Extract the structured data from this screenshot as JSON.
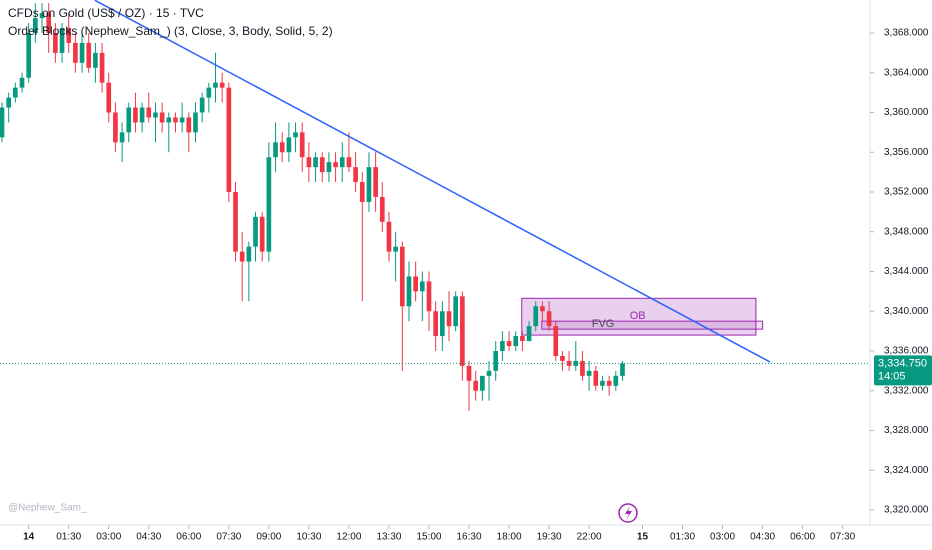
{
  "chart_data": {
    "type": "candlestick",
    "title": "CFDs on Gold (US$ / OZ) · 15 · TVC",
    "subtitle": "Order Blocks (Nephew_Sam_) (3, Close, 3, Body, Solid, 5, 2)",
    "watermark": "@Nephew_Sam_",
    "up_color": "#089981",
    "down_color": "#f23645",
    "open": [
      3357.5,
      3360.5,
      3361.5,
      3362.5,
      3363.5,
      3368,
      3369.5,
      3370,
      3368,
      3366,
      3368.5,
      3367,
      3365,
      3367,
      3364.5,
      3366,
      3363,
      3360,
      3357,
      3358,
      3360.5,
      3359,
      3360.5,
      3359.5,
      3360,
      3359,
      3359.5,
      3359,
      3359.5,
      3358,
      3360,
      3361.5,
      3362.5,
      3363,
      3362.5,
      3352,
      3346,
      3345,
      3346.5,
      3349.5,
      3346,
      3355.5,
      3357,
      3356,
      3357.5,
      3358,
      3355.5,
      3354.5,
      3355.5,
      3354,
      3355,
      3354.5,
      3355.5,
      3354.5,
      3353,
      3351,
      3354.5,
      3351.5,
      3349,
      3346,
      3346.5,
      3340.5,
      3343.5,
      3342,
      3343,
      3340,
      3337.5,
      3340,
      3338.5,
      3341.5,
      3334.5,
      3333,
      3332,
      3333.5,
      3334,
      3336,
      3337,
      3336.5,
      3337.5,
      3337,
      3338.5,
      3340.5,
      3340,
      3338.5,
      3335.5,
      3335,
      3334.5,
      3335,
      3333.5,
      3334,
      3332.5,
      3333,
      3332.5,
      3333.5
    ],
    "high": [
      3361,
      3362,
      3363,
      3364,
      3369,
      3371,
      3371,
      3371,
      3369,
      3369,
      3370,
      3368,
      3368,
      3368,
      3367,
      3367,
      3364,
      3361,
      3359,
      3361,
      3362,
      3361,
      3362,
      3361,
      3361,
      3360,
      3360,
      3361,
      3360,
      3361,
      3362,
      3363,
      3366,
      3364,
      3363,
      3353,
      3348,
      3347,
      3350,
      3350,
      3357,
      3359,
      3358,
      3359,
      3359,
      3359,
      3357,
      3356,
      3356,
      3356,
      3356,
      3357,
      3358,
      3356,
      3354,
      3356,
      3356,
      3353,
      3350,
      3348,
      3347,
      3345,
      3345,
      3344,
      3344,
      3341,
      3341,
      3342,
      3342,
      3342,
      3335,
      3334,
      3333,
      3335,
      3337,
      3338,
      3338,
      3338,
      3338,
      3339,
      3341,
      3341,
      3341,
      3339,
      3336,
      3336,
      3337,
      3336,
      3335,
      3334.5,
      3333.5,
      3333.5,
      3334,
      3335
    ],
    "low": [
      3357,
      3359,
      3361,
      3362,
      3363,
      3367,
      3368,
      3366,
      3365,
      3365,
      3366,
      3364,
      3364,
      3364,
      3363,
      3362,
      3359,
      3356,
      3355,
      3357,
      3358,
      3358,
      3359,
      3357,
      3358,
      3356,
      3358,
      3358,
      3356,
      3357,
      3359,
      3360,
      3361,
      3361,
      3351,
      3345,
      3341,
      3341,
      3345,
      3345,
      3345,
      3354,
      3355,
      3355,
      3356,
      3354,
      3353,
      3353,
      3353,
      3353,
      3353,
      3353,
      3354,
      3352,
      3341,
      3350,
      3350,
      3348,
      3345,
      3343,
      3334,
      3339,
      3341,
      3339,
      3338,
      3336,
      3336,
      3337,
      3338,
      3333,
      3330,
      3331,
      3331,
      3331,
      3333,
      3335,
      3336,
      3336,
      3336,
      3337,
      3338,
      3339,
      3338,
      3335,
      3334,
      3334,
      3334,
      3333,
      3332,
      3332,
      3332,
      3331.5,
      3332,
      3333
    ],
    "close": [
      3360.5,
      3361.5,
      3362.5,
      3363.5,
      3368,
      3369.5,
      3370,
      3368,
      3366,
      3368.5,
      3367,
      3365,
      3367,
      3364.5,
      3366,
      3363,
      3360,
      3357,
      3358,
      3360.5,
      3359,
      3360.5,
      3359.5,
      3360,
      3359,
      3359.5,
      3359,
      3359.5,
      3358,
      3360,
      3361.5,
      3362.5,
      3363,
      3362.5,
      3352,
      3346,
      3345,
      3346.5,
      3349.5,
      3346,
      3355.5,
      3357,
      3356,
      3357.5,
      3358,
      3355.5,
      3354.5,
      3355.5,
      3354,
      3355,
      3354.5,
      3355.5,
      3354.5,
      3353,
      3351,
      3354.5,
      3351.5,
      3349,
      3346,
      3346.5,
      3340.5,
      3343.5,
      3342,
      3343,
      3340,
      3337.5,
      3340,
      3338.5,
      3341.5,
      3334.5,
      3333,
      3332,
      3333.5,
      3334,
      3336,
      3337,
      3336.5,
      3337.5,
      3337,
      3338.5,
      3340.5,
      3340,
      3338.5,
      3335.5,
      3335,
      3334.5,
      3335,
      3333.5,
      3334,
      3332.5,
      3333,
      3332.5,
      3333.5,
      3334.75
    ],
    "xlim": [
      -0.3,
      130.1
    ],
    "ylim": [
      3318.49,
      3371.32
    ],
    "xticks": [
      {
        "value": 4,
        "label": "14"
      },
      {
        "value": 10,
        "label": "01:30"
      },
      {
        "value": 16,
        "label": "03:00"
      },
      {
        "value": 22,
        "label": "04:30"
      },
      {
        "value": 28,
        "label": "06:00"
      },
      {
        "value": 34,
        "label": "07:30"
      },
      {
        "value": 40,
        "label": "09:00"
      },
      {
        "value": 46,
        "label": "10:30"
      },
      {
        "value": 52,
        "label": "12:00"
      },
      {
        "value": 58,
        "label": "13:30"
      },
      {
        "value": 64,
        "label": "15:00"
      },
      {
        "value": 70,
        "label": "16:30"
      },
      {
        "value": 76,
        "label": "18:00"
      },
      {
        "value": 82,
        "label": "19:30"
      },
      {
        "value": 88,
        "label": "22:00"
      },
      {
        "value": 96,
        "label": "15"
      },
      {
        "value": 102,
        "label": "01:30"
      },
      {
        "value": 108,
        "label": "03:00"
      },
      {
        "value": 114,
        "label": "04:30"
      },
      {
        "value": 120,
        "label": "06:00"
      },
      {
        "value": 126,
        "label": "07:30"
      }
    ],
    "yticks": [
      {
        "value": 3368,
        "label": "3,368.000"
      },
      {
        "value": 3364,
        "label": "3,364.000"
      },
      {
        "value": 3360,
        "label": "3,360.000"
      },
      {
        "value": 3356,
        "label": "3,356.000"
      },
      {
        "value": 3352,
        "label": "3,352.000"
      },
      {
        "value": 3348,
        "label": "3,348.000"
      },
      {
        "value": 3344,
        "label": "3,344.000"
      },
      {
        "value": 3340,
        "label": "3,340.000"
      },
      {
        "value": 3336,
        "label": "3,336.000"
      },
      {
        "value": 3332,
        "label": "3,332.000"
      },
      {
        "value": 3328,
        "label": "3,328.000"
      },
      {
        "value": 3324,
        "label": "3,324.000"
      },
      {
        "value": 3320,
        "label": "3,320.000"
      }
    ],
    "trendline": {
      "color": "#2962ff",
      "x": [
        13.9,
        115.1
      ],
      "y": [
        3371.3,
        3334.9
      ]
    },
    "order_block": {
      "label": "OB",
      "x": [
        77.9,
        113
      ],
      "y": [
        3337.6,
        3341.3
      ],
      "color": "#9c27b0"
    },
    "fvg": {
      "label": "FVG",
      "x": [
        80.9,
        114
      ],
      "y": [
        3338.2,
        3339.0
      ],
      "color": "#9c27b0"
    },
    "last_price": {
      "value": 3334.75,
      "label": "3,334.750"
    },
    "countdown": "14:05"
  }
}
